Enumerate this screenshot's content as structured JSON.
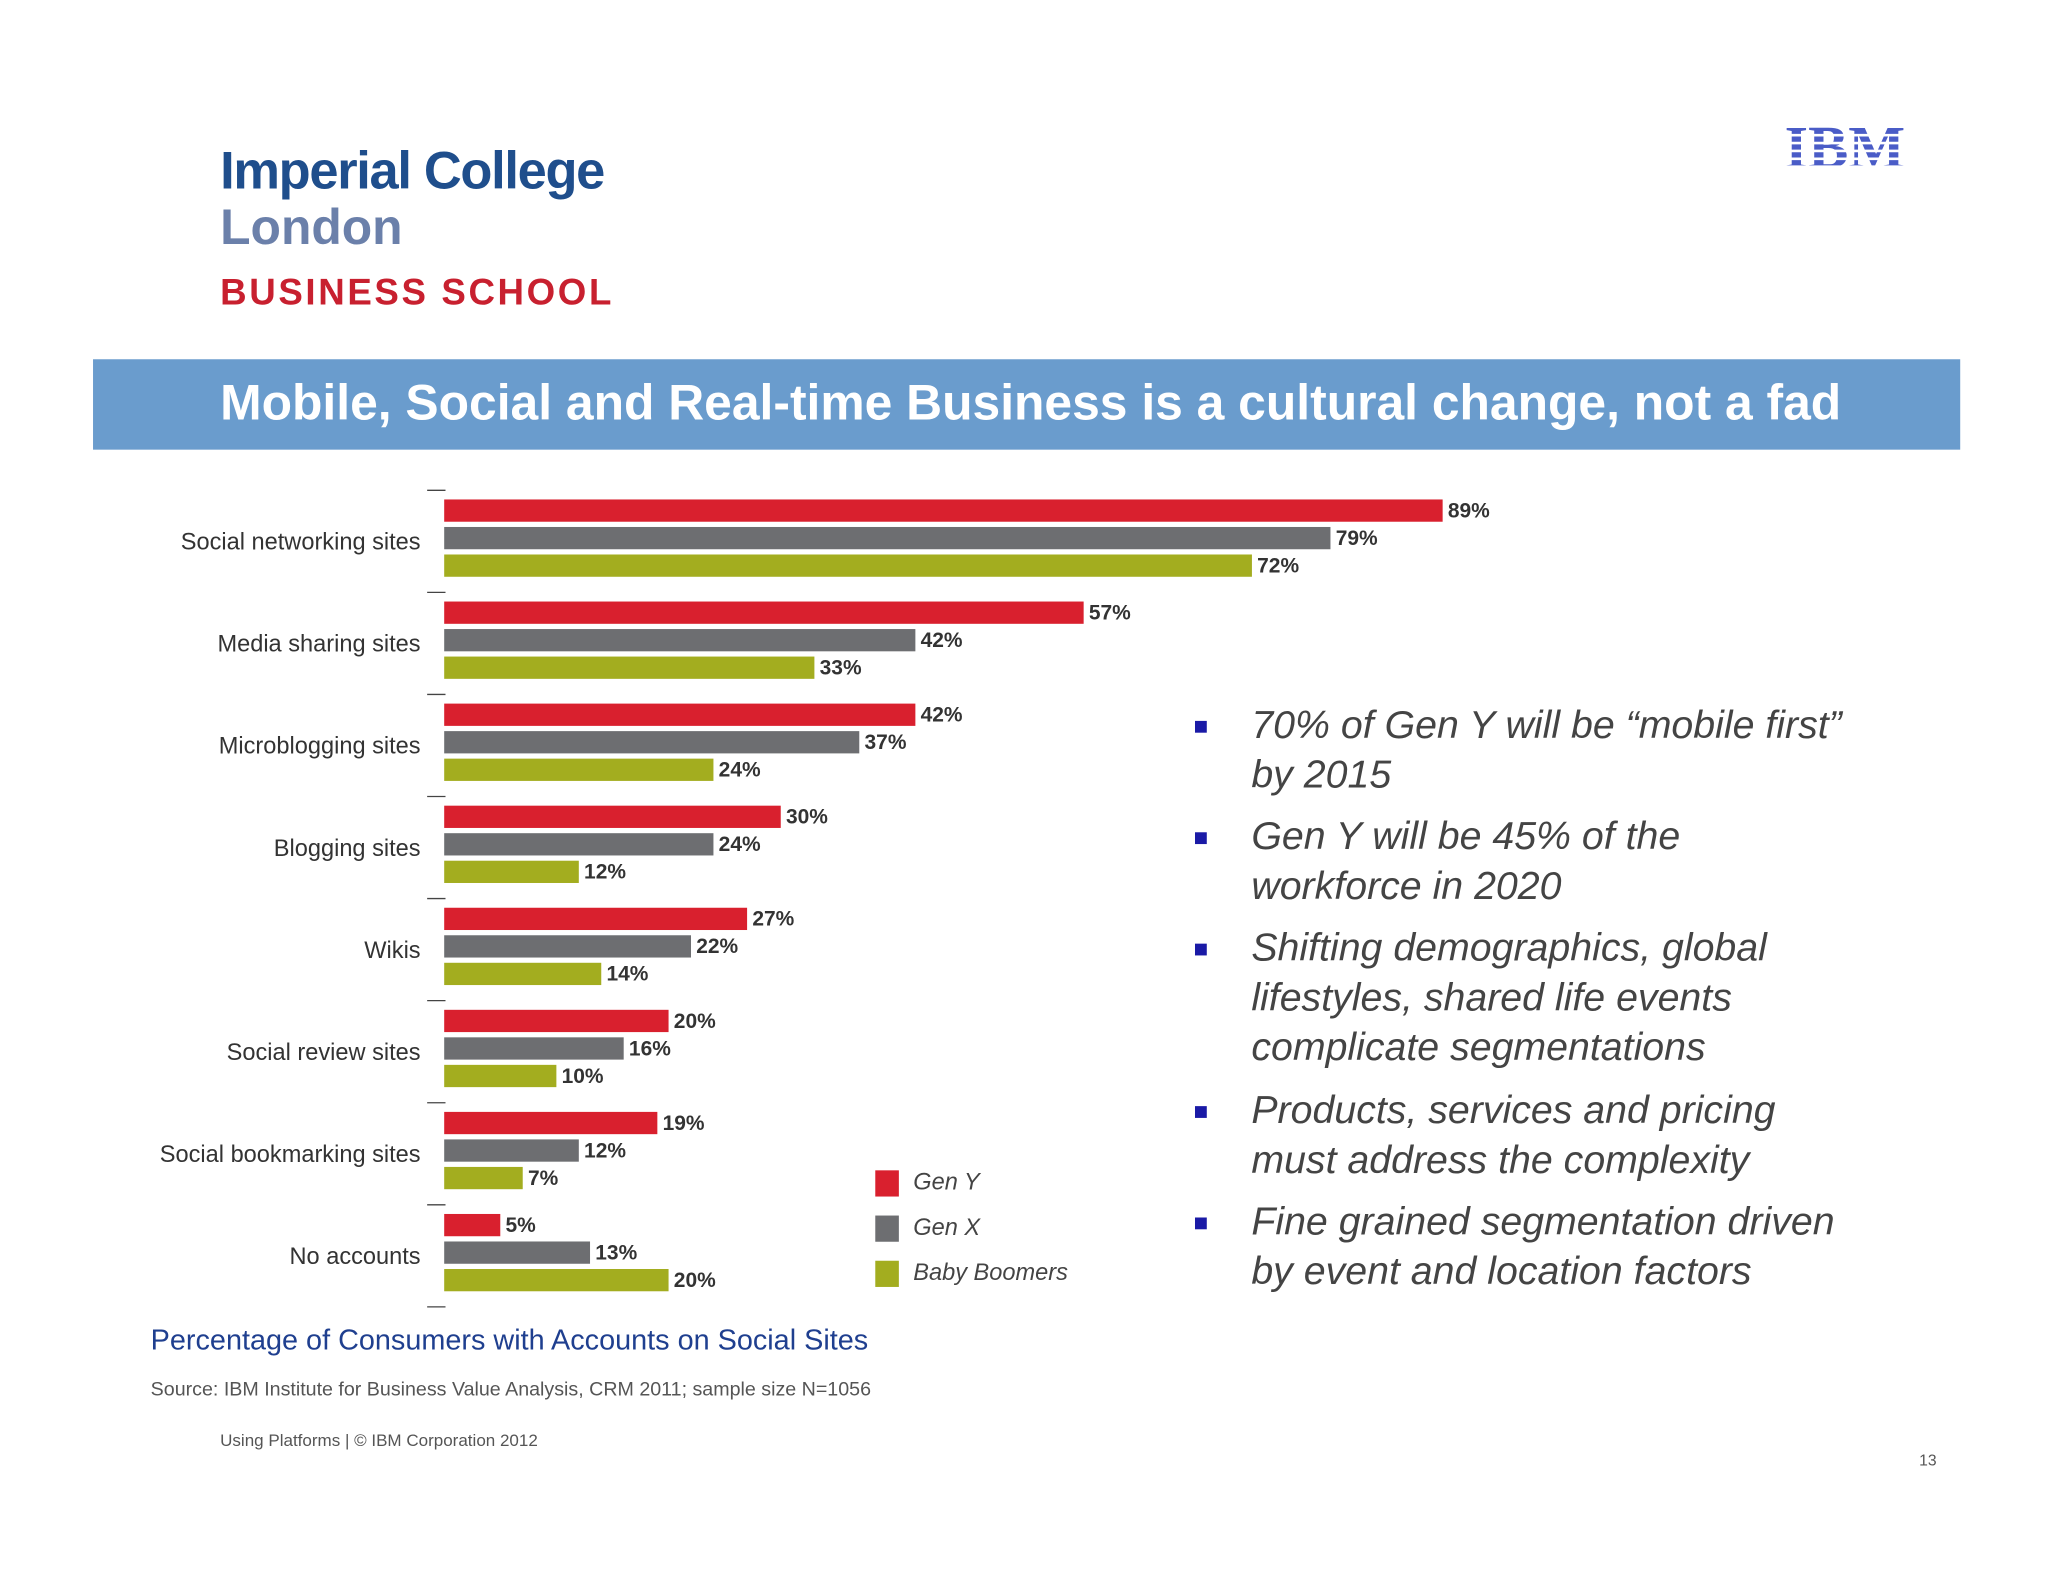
{
  "logo": {
    "line1": "Imperial College",
    "line2": "London",
    "line3": "BUSINESS SCHOOL"
  },
  "brand": "IBM",
  "banner_title": "Mobile, Social and Real-time Business is a cultural change, not a fad",
  "chart_data": {
    "type": "hbar",
    "caption": "Percentage of Consumers with Accounts on Social Sites",
    "source": "Source: IBM Institute for Business Value Analysis, CRM 2011; sample size N=1056",
    "categories": [
      "Social networking sites",
      "Media sharing sites",
      "Microblogging sites",
      "Blogging sites",
      "Wikis",
      "Social review sites",
      "Social bookmarking sites",
      "No accounts"
    ],
    "series": [
      {
        "name": "Gen Y",
        "color": "#d9202e",
        "values": [
          89,
          57,
          42,
          30,
          27,
          20,
          19,
          5
        ],
        "value_labels": [
          "89%",
          "57%",
          "42%",
          "30%",
          "27%",
          "20%",
          "19%",
          "5%"
        ]
      },
      {
        "name": "Gen X",
        "color": "#6d6e71",
        "values": [
          79,
          42,
          37,
          24,
          22,
          16,
          12,
          13
        ],
        "value_labels": [
          "79%",
          "42%",
          "37%",
          "24%",
          "22%",
          "16%",
          "12%",
          "13%"
        ]
      },
      {
        "name": "Baby Boomers",
        "color": "#a3ad1f",
        "values": [
          72,
          33,
          24,
          12,
          14,
          10,
          7,
          20
        ],
        "value_labels": [
          "72%",
          "33%",
          "24%",
          "12%",
          "14%",
          "10%",
          "7%",
          "20%"
        ]
      }
    ]
  },
  "bullets": [
    [
      "70% of Gen Y will be “mobile first”",
      "by 2015"
    ],
    [
      "Gen Y will be 45% of the",
      "workforce in 2020"
    ],
    [
      "Shifting demographics, global",
      "lifestyles, shared life events",
      "complicate segmentations"
    ],
    [
      "Products, services and pricing",
      "must address the complexity"
    ],
    [
      "Fine grained segmentation driven",
      "by event and location factors"
    ]
  ],
  "footer": {
    "text": "Using Platforms | © IBM Corporation 2012",
    "page": "13"
  }
}
